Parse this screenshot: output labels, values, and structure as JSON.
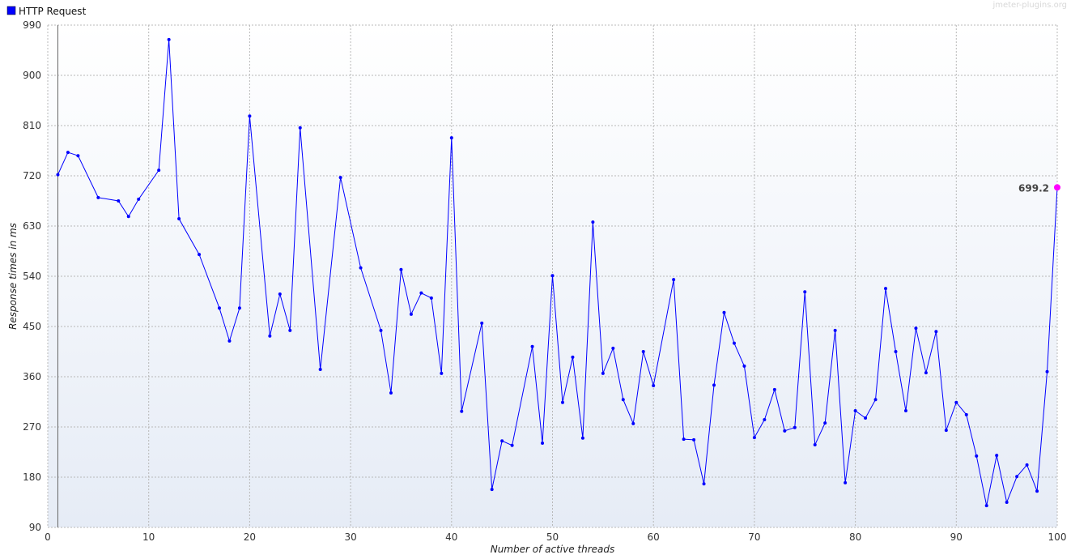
{
  "chart_data": {
    "type": "line",
    "watermark": "jmeter-plugins.org",
    "xlabel": "Number of active threads",
    "ylabel": "Response times in ms",
    "xlim": [
      0,
      100
    ],
    "xticks": [
      0,
      10,
      20,
      30,
      40,
      50,
      60,
      70,
      80,
      90,
      100
    ],
    "ylim": [
      90,
      990
    ],
    "yticks": [
      90,
      180,
      270,
      360,
      450,
      540,
      630,
      720,
      810,
      900,
      990
    ],
    "grid": true,
    "legend": "top-left",
    "highlight_color": "#ff00ff",
    "x": [
      1,
      2,
      3,
      5,
      7,
      8,
      9,
      11,
      12,
      13,
      15,
      17,
      18,
      19,
      20,
      22,
      23,
      24,
      25,
      27,
      29,
      31,
      33,
      34,
      35,
      36,
      37,
      38,
      39,
      40,
      41,
      43,
      44,
      45,
      46,
      48,
      49,
      50,
      51,
      52,
      53,
      54,
      55,
      56,
      57,
      58,
      59,
      60,
      62,
      63,
      64,
      65,
      66,
      67,
      68,
      69,
      70,
      71,
      72,
      73,
      74,
      75,
      76,
      77,
      78,
      79,
      80,
      81,
      82,
      83,
      84,
      85,
      86,
      87,
      88,
      89,
      90,
      91,
      92,
      93,
      94,
      95,
      96,
      97,
      98,
      99,
      100
    ],
    "series": [
      {
        "name": "HTTP Request",
        "color": "#0000ff",
        "values": [
          722,
          762,
          756,
          681,
          675,
          647,
          678,
          730,
          964,
          643,
          579,
          483,
          424,
          483,
          827,
          433,
          508,
          443,
          806,
          373,
          717,
          555,
          443,
          331,
          552,
          472,
          510,
          501,
          366,
          788,
          298,
          456,
          158,
          245,
          237,
          414,
          241,
          541,
          314,
          395,
          250,
          637,
          366,
          411,
          319,
          276,
          405,
          344,
          534,
          248,
          247,
          168,
          345,
          475,
          420,
          379,
          251,
          283,
          337,
          263,
          269,
          512,
          238,
          277,
          443,
          170,
          299,
          286,
          319,
          518,
          405,
          299,
          447,
          367,
          441,
          264,
          314,
          292,
          218,
          129,
          219,
          135,
          181,
          202,
          155,
          369,
          699.2
        ]
      }
    ]
  }
}
